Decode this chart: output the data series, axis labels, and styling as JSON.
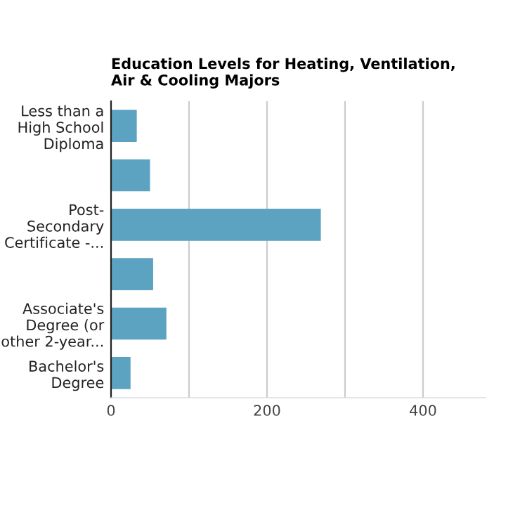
{
  "chart_data": {
    "type": "bar",
    "orientation": "horizontal",
    "title": "Education Levels for Heating, Ventilation,\nAir & Cooling Majors",
    "categories": [
      "Less than a\nHigh School\nDiploma",
      null,
      "Post-\nSecondary\nCertificate -...",
      null,
      "Associate's\nDegree (or\nother 2-year...",
      "Bachelor's\nDegree"
    ],
    "values": [
      33,
      50,
      269,
      54,
      71,
      25
    ],
    "color": "#5ba3c0",
    "xlim": [
      0,
      480
    ],
    "xticks": [
      0,
      {
        "value": 100,
        "label": null
      },
      200,
      {
        "value": 300,
        "label": null
      },
      400
    ],
    "grid": "x"
  }
}
